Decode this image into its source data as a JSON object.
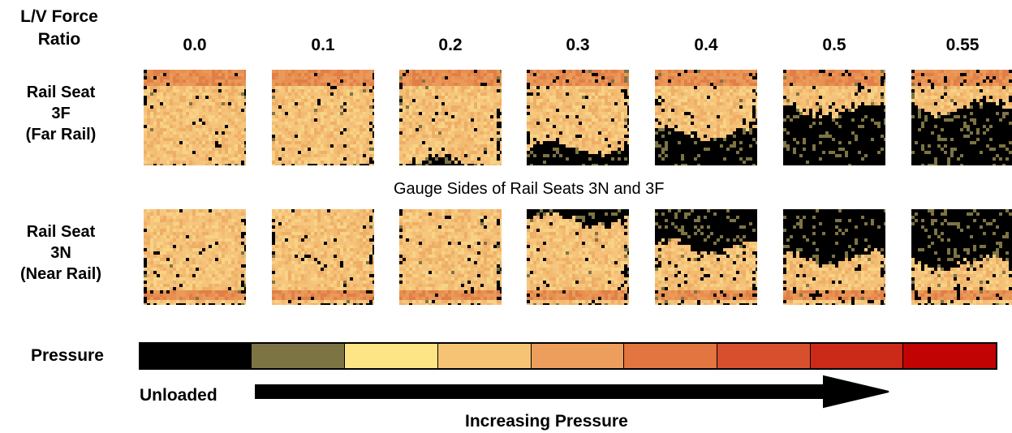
{
  "header": {
    "line1": "L/V Force",
    "line2": "Ratio"
  },
  "ratios": [
    "0.0",
    "0.1",
    "0.2",
    "0.3",
    "0.4",
    "0.5",
    "0.55"
  ],
  "rows": [
    {
      "line1": "Rail Seat",
      "line2": "3F",
      "line3": "(Far Rail)",
      "unloaded_fraction": [
        0.0,
        0.0,
        0.05,
        0.2,
        0.35,
        0.6,
        0.62
      ],
      "unloaded_side": "bottom"
    },
    {
      "line1": "Rail Seat",
      "line2": "3N",
      "line3": "(Near Rail)",
      "unloaded_fraction": [
        0.0,
        0.0,
        0.0,
        0.1,
        0.38,
        0.5,
        0.55
      ],
      "unloaded_side": "top"
    }
  ],
  "caption": "Gauge Sides of Rail Seats 3N and 3F",
  "legend": {
    "label": "Pressure",
    "colors": [
      "#000000",
      "#7d7444",
      "#fde585",
      "#f6c375",
      "#ee9e5c",
      "#e37540",
      "#d84f2e",
      "#cc2a18",
      "#c20304"
    ],
    "low_label": "Unloaded",
    "arrow_label": "Increasing Pressure"
  }
}
